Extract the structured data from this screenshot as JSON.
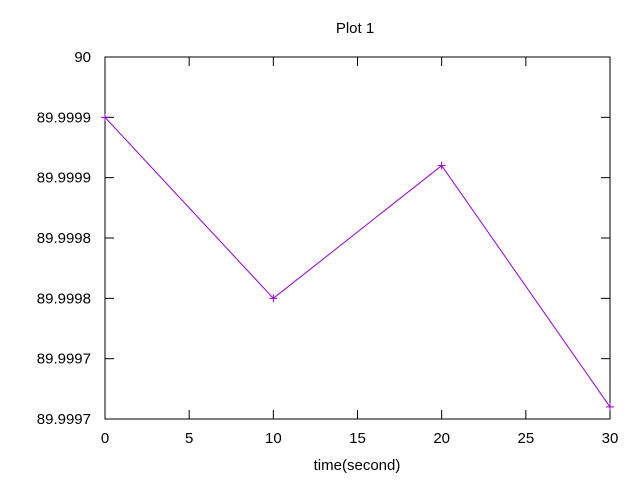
{
  "chart_data": {
    "type": "line",
    "title": "Plot 1",
    "xlabel": "time(second)",
    "ylabel": "",
    "xlim": [
      0,
      30
    ],
    "ylim": [
      89.9997,
      90.0
    ],
    "x_ticks": [
      {
        "value": 0,
        "label": "0"
      },
      {
        "value": 5,
        "label": "5"
      },
      {
        "value": 10,
        "label": "10"
      },
      {
        "value": 15,
        "label": "15"
      },
      {
        "value": 20,
        "label": "20"
      },
      {
        "value": 25,
        "label": "25"
      },
      {
        "value": 30,
        "label": "30"
      }
    ],
    "y_ticks": [
      {
        "value": 89.9997,
        "label": "89.9997"
      },
      {
        "value": 89.99975,
        "label": "89.9997"
      },
      {
        "value": 89.9998,
        "label": "89.9998"
      },
      {
        "value": 89.99985,
        "label": "89.9998"
      },
      {
        "value": 89.9999,
        "label": "89.9999"
      },
      {
        "value": 89.99995,
        "label": "89.9999"
      },
      {
        "value": 90.0,
        "label": "90"
      }
    ],
    "grid": false,
    "series": [
      {
        "color": "#9400d3",
        "marker": "plus",
        "x": [
          0,
          10,
          20,
          30
        ],
        "y": [
          89.99995,
          89.9998,
          89.99991,
          89.99971
        ]
      }
    ]
  }
}
